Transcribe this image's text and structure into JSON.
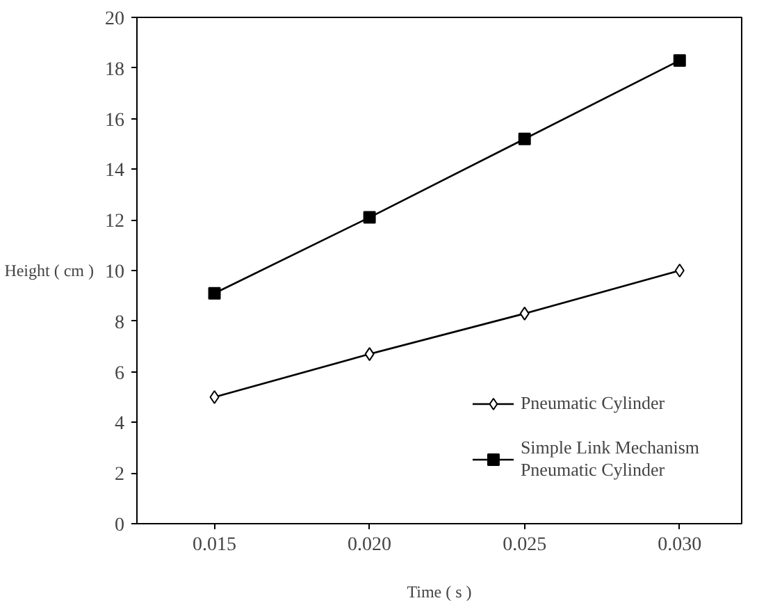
{
  "chart_data": {
    "type": "line",
    "xlabel": "Time ( s )",
    "ylabel": "Height ( cm )",
    "x": [
      0.015,
      0.02,
      0.025,
      0.03
    ],
    "xlim": [
      0.0125,
      0.032
    ],
    "xticks": [
      {
        "value": 0.015,
        "label": "0.015"
      },
      {
        "value": 0.02,
        "label": "0.020"
      },
      {
        "value": 0.025,
        "label": "0.025"
      },
      {
        "value": 0.03,
        "label": "0.030"
      }
    ],
    "ylim": [
      0,
      20
    ],
    "yticks": [
      0,
      2,
      4,
      6,
      8,
      10,
      12,
      14,
      16,
      18,
      20
    ],
    "grid": false,
    "legend": "bottom right",
    "line_style": "solid",
    "series": [
      {
        "name": "Pneumatic Cylinder",
        "color": "#000000",
        "marker": "diamond",
        "values": [
          5.0,
          6.7,
          8.3,
          10.0
        ]
      },
      {
        "name": "Simple Link Mechanism\nPneumatic Cylinder",
        "color": "#000000",
        "marker": "square",
        "values": [
          9.1,
          12.1,
          15.2,
          18.3
        ]
      }
    ]
  }
}
